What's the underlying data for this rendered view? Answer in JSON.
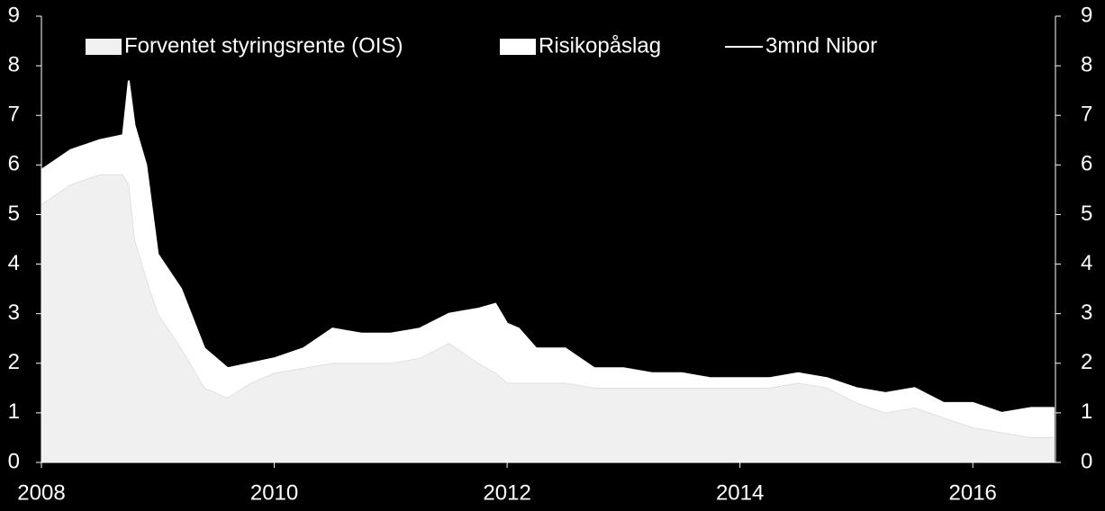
{
  "chart_data": {
    "type": "stacked-area",
    "x": [
      2008.0,
      2008.25,
      2008.5,
      2008.7,
      2008.75,
      2008.8,
      2008.9,
      2009.0,
      2009.2,
      2009.4,
      2009.6,
      2009.8,
      2010.0,
      2010.25,
      2010.5,
      2010.75,
      2011.0,
      2011.25,
      2011.5,
      2011.75,
      2011.9,
      2012.0,
      2012.1,
      2012.25,
      2012.5,
      2012.75,
      2013.0,
      2013.25,
      2013.5,
      2013.75,
      2014.0,
      2014.25,
      2014.5,
      2014.75,
      2015.0,
      2015.25,
      2015.5,
      2015.75,
      2016.0,
      2016.25,
      2016.5,
      2016.7
    ],
    "series": [
      {
        "name": "Forventet styringsrente (OIS)",
        "color": "#f0f0f0",
        "kind": "area",
        "values": [
          5.2,
          5.6,
          5.8,
          5.8,
          5.6,
          4.5,
          3.7,
          3.0,
          2.3,
          1.5,
          1.3,
          1.6,
          1.8,
          1.9,
          2.0,
          2.0,
          2.0,
          2.1,
          2.4,
          2.0,
          1.8,
          1.6,
          1.6,
          1.6,
          1.6,
          1.5,
          1.5,
          1.5,
          1.5,
          1.5,
          1.5,
          1.5,
          1.6,
          1.5,
          1.2,
          1.0,
          1.1,
          0.9,
          0.7,
          0.6,
          0.5,
          0.5
        ]
      },
      {
        "name": "Risikopåslag",
        "color": "#ffffff",
        "kind": "area",
        "values": [
          0.7,
          0.7,
          0.7,
          0.8,
          2.1,
          2.3,
          2.3,
          1.2,
          1.2,
          0.8,
          0.6,
          0.4,
          0.3,
          0.4,
          0.7,
          0.6,
          0.6,
          0.6,
          0.6,
          1.1,
          1.4,
          1.2,
          1.1,
          0.7,
          0.7,
          0.4,
          0.4,
          0.3,
          0.3,
          0.2,
          0.2,
          0.2,
          0.2,
          0.2,
          0.3,
          0.4,
          0.4,
          0.3,
          0.5,
          0.4,
          0.6,
          0.6
        ]
      },
      {
        "name": "3mnd Nibor",
        "color": "#ffffff",
        "kind": "line",
        "values": [
          5.9,
          6.3,
          6.5,
          6.6,
          7.7,
          6.8,
          6.0,
          4.2,
          3.5,
          2.3,
          1.9,
          2.0,
          2.1,
          2.3,
          2.7,
          2.6,
          2.6,
          2.7,
          3.0,
          3.1,
          3.2,
          2.8,
          2.7,
          2.3,
          2.3,
          1.9,
          1.9,
          1.8,
          1.8,
          1.7,
          1.7,
          1.7,
          1.8,
          1.7,
          1.5,
          1.4,
          1.5,
          1.2,
          1.2,
          1.0,
          1.1,
          1.1
        ]
      }
    ],
    "xlim": [
      2008,
      2016.71
    ],
    "xticks": [
      2008,
      2010,
      2012,
      2014,
      2016
    ],
    "ylim": [
      0,
      9
    ],
    "yticks": [
      0,
      1,
      2,
      3,
      4,
      5,
      6,
      7,
      8,
      9
    ],
    "y2lim": [
      0,
      9
    ],
    "y2ticks": [
      0,
      1,
      2,
      3,
      4,
      5,
      6,
      7,
      8,
      9
    ],
    "legend": "top"
  }
}
